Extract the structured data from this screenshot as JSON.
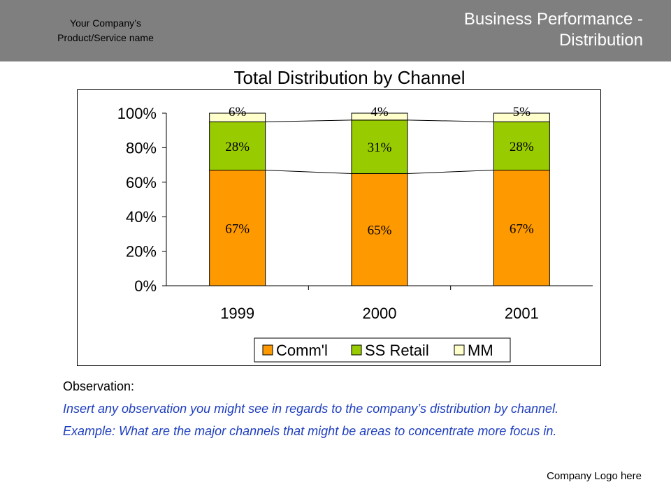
{
  "header": {
    "company_line1": "Your Company’s",
    "company_line2": "Product/Service name",
    "title_line1": "Business Performance -",
    "title_line2": "Distribution"
  },
  "chart_data": {
    "type": "bar",
    "stacked": true,
    "title": "Total Distribution by Channel",
    "categories": [
      "1999",
      "2000",
      "2001"
    ],
    "series": [
      {
        "name": "Comm'l",
        "values": [
          67,
          65,
          67
        ],
        "labels": [
          "67%",
          "65%",
          "67%"
        ],
        "color": "#ff9900"
      },
      {
        "name": "SS Retail",
        "values": [
          28,
          31,
          28
        ],
        "labels": [
          "28%",
          "31%",
          "28%"
        ],
        "color": "#99cc00"
      },
      {
        "name": "MM",
        "values": [
          6,
          4,
          5
        ],
        "labels": [
          "6%",
          "4%",
          "5%"
        ],
        "color": "#ffffcc"
      }
    ],
    "yticks": [
      "0%",
      "20%",
      "40%",
      "60%",
      "80%",
      "100%"
    ],
    "ylim": [
      0,
      100
    ],
    "grid": false,
    "legend": "bottom",
    "series_lines": true
  },
  "observation": {
    "heading": "Observation:",
    "line1": "Insert any observation you might see in regards to the company’s distribution by channel.",
    "line2": "Example: What are the major channels that might be areas to concentrate more focus in."
  },
  "footer": {
    "logo": "Company Logo here"
  }
}
